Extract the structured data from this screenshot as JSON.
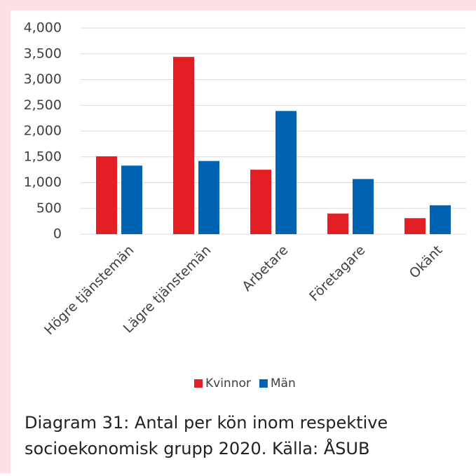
{
  "chart_data": {
    "type": "bar",
    "categories": [
      "Högre tjänstemän",
      "Lägre tjänstemän",
      "Arbetare",
      "Företagare",
      "Okänt"
    ],
    "series": [
      {
        "name": "Kvinnor",
        "color": "#e31e24",
        "values": [
          1510,
          3440,
          1250,
          400,
          310
        ]
      },
      {
        "name": "Män",
        "color": "#0063b1",
        "values": [
          1330,
          1420,
          2390,
          1070,
          560
        ]
      }
    ],
    "ylim": [
      0,
      4000
    ],
    "yticks": [
      0,
      500,
      {
        "value": 1000,
        "label": "1,000"
      },
      {
        "value": 1500,
        "label": "1,500"
      },
      {
        "value": 2000,
        "label": "2,000"
      },
      {
        "value": 2500,
        "label": "2,500"
      },
      {
        "value": 3000,
        "label": "3,000"
      },
      {
        "value": 3500,
        "label": "3,500"
      },
      {
        "value": 4000,
        "label": "4,000"
      }
    ],
    "grid": true,
    "legend": "bottom",
    "caption": "Diagram 31: Antal per kön inom respektive socioekonomisk grupp 2020. Källa: ÅSUB"
  }
}
